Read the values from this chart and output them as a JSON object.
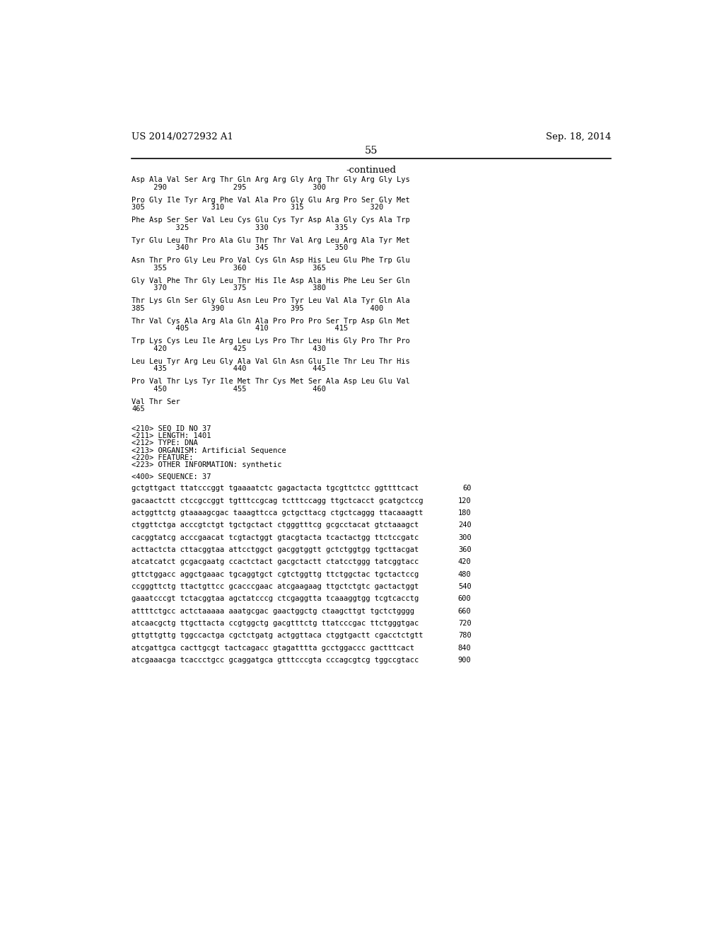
{
  "header_left": "US 2014/0272932 A1",
  "header_right": "Sep. 18, 2014",
  "page_number": "55",
  "continued_label": "-continued",
  "background_color": "#ffffff",
  "text_color": "#000000",
  "mono_font_size": 7.5,
  "header_font_size": 9.5,
  "page_num_font_size": 10.5,
  "aa_content": [
    [
      "Asp Ala Val Ser Arg Thr Gln Arg Arg Gly Arg Thr Gly Arg Gly Lys",
      "     290               295               300"
    ],
    [
      "Pro Gly Ile Tyr Arg Phe Val Ala Pro Gly Glu Arg Pro Ser Gly Met",
      "305               310               315               320"
    ],
    [
      "Phe Asp Ser Ser Val Leu Cys Glu Cys Tyr Asp Ala Gly Cys Ala Trp",
      "          325               330               335"
    ],
    [
      "Tyr Glu Leu Thr Pro Ala Glu Thr Thr Val Arg Leu Arg Ala Tyr Met",
      "          340               345               350"
    ],
    [
      "Asn Thr Pro Gly Leu Pro Val Cys Gln Asp His Leu Glu Phe Trp Glu",
      "     355               360               365"
    ],
    [
      "Gly Val Phe Thr Gly Leu Thr His Ile Asp Ala His Phe Leu Ser Gln",
      "     370               375               380"
    ],
    [
      "Thr Lys Gln Ser Gly Glu Asn Leu Pro Tyr Leu Val Ala Tyr Gln Ala",
      "385               390               395               400"
    ],
    [
      "Thr Val Cys Ala Arg Ala Gln Ala Pro Pro Pro Ser Trp Asp Gln Met",
      "          405               410               415"
    ],
    [
      "Trp Lys Cys Leu Ile Arg Leu Lys Pro Thr Leu His Gly Pro Thr Pro",
      "     420               425               430"
    ],
    [
      "Leu Leu Tyr Arg Leu Gly Ala Val Gln Asn Glu Ile Thr Leu Thr His",
      "     435               440               445"
    ],
    [
      "Pro Val Thr Lys Tyr Ile Met Thr Cys Met Ser Ala Asp Leu Glu Val",
      "     450               455               460"
    ],
    [
      "Val Thr Ser",
      "465"
    ]
  ],
  "seq_info": [
    "<210> SEQ ID NO 37",
    "<211> LENGTH: 1401",
    "<212> TYPE: DNA",
    "<213> ORGANISM: Artificial Sequence",
    "<220> FEATURE:",
    "<223> OTHER INFORMATION: synthetic"
  ],
  "seq_label": "<400> SEQUENCE: 37",
  "dna_lines": [
    [
      "gctgttgact ttatcccggt tgaaaatctc gagactacta tgcgttctcc ggttttcact",
      "60"
    ],
    [
      "gacaactctt ctccgccggt tgtttccgcag tctttccagg ttgctcacct gcatgctccg",
      "120"
    ],
    [
      "actggttctg gtaaaagcgac taaagttcca gctgcttacg ctgctcaggg ttacaaagtt",
      "180"
    ],
    [
      "ctggttctga acccgtctgt tgctgctact ctgggtttcg gcgcctacat gtctaaagct",
      "240"
    ],
    [
      "cacggtatcg acccgaacat tcgtactggt gtacgtacta tcactactgg ttctccgatc",
      "300"
    ],
    [
      "acttactcta cttacggtaa attcctggct gacggtggtt gctctggtgg tgcttacgat",
      "360"
    ],
    [
      "atcatcatct gcgacgaatg ccactctact gacgctactt ctatcctggg tatcggtacc",
      "420"
    ],
    [
      "gttctggacc aggctgaaac tgcaggtgct cgtctggttg ttctggctac tgctactccg",
      "480"
    ],
    [
      "ccgggttctg ttactgttcc gcacccgaac atcgaagaag ttgctctgtc gactactggt",
      "540"
    ],
    [
      "gaaatcccgt tctacggtaa agctatcccg ctcgaggtta tcaaaggtgg tcgtcacctg",
      "600"
    ],
    [
      "attttctgcc actctaaaaa aaatgcgac gaactggctg ctaagcttgt tgctctgggg",
      "660"
    ],
    [
      "atcaacgctg ttgcttacta ccgtggctg gacgtttctg ttatcccgac ttctgggtgac",
      "720"
    ],
    [
      "gttgttgttg tggccactga cgctctgatg actggttaca ctggtgactt cgacctctgtt",
      "780"
    ],
    [
      "atcgattgca cacttgcgt tactcagacc gtagatttta gcctggaccc gactttcact",
      "840"
    ],
    [
      "atcgaaacga tcaccctgcc gcaggatgca gtttcccgta cccagcgtcg tggccgtacc",
      "900"
    ]
  ]
}
